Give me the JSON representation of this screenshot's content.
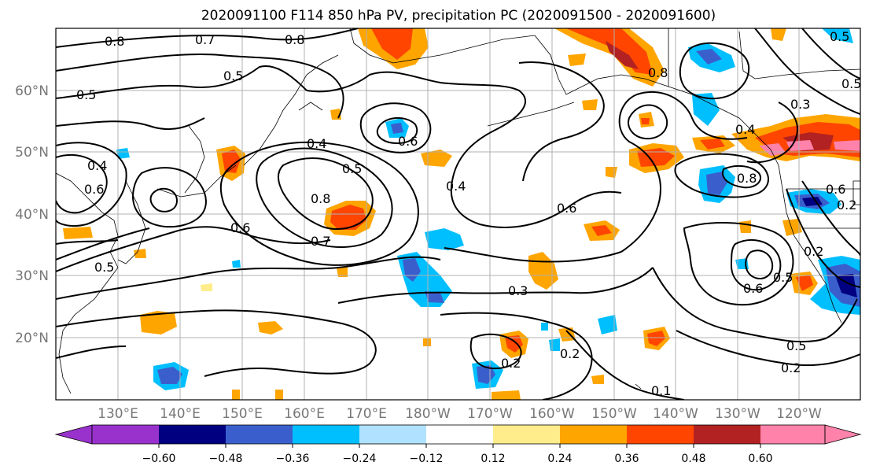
{
  "title": "2020091100 F114 850 hPa PV, precipitation PC (2020091500 - 2020091600)",
  "lon_labels": [
    "130°E",
    "140°E",
    "150°E",
    "160°E",
    "170°E",
    "180°W",
    "170°W",
    "160°W",
    "150°W",
    "140°W",
    "130°W",
    "120°W"
  ],
  "lat_labels": [
    "60°N",
    "50°N",
    "40°N",
    "30°N",
    "20°N"
  ],
  "colorbar": {
    "ticks": [
      "−0.60",
      "−0.48",
      "−0.36",
      "−0.24",
      "−0.12",
      "0.12",
      "0.24",
      "0.36",
      "0.48",
      "0.60"
    ],
    "colors": [
      "#9932CC",
      "#000080",
      "#3A5FCD",
      "#00BFFF",
      "#B0E2FF",
      "#FFFFFF",
      "#FFEC8B",
      "#FFA500",
      "#FF4500",
      "#B22222",
      "#FF82AB"
    ]
  },
  "contour_labels": [
    "0.8",
    "0.7",
    "0.8",
    "0.5",
    "0.5",
    "0.4",
    "0.6",
    "0.4",
    "0.5",
    "0.8",
    "0.6",
    "0.7",
    "0.5",
    "0.6",
    "0.4",
    "0.6",
    "0.3",
    "0.2",
    "0.2",
    "0.3",
    "0.4",
    "0.8",
    "0.6",
    "0.5",
    "0.2",
    "0.5",
    "0.2",
    "0.6",
    "0.8",
    "0.5",
    "0.2",
    "0.1",
    "0.5"
  ]
}
